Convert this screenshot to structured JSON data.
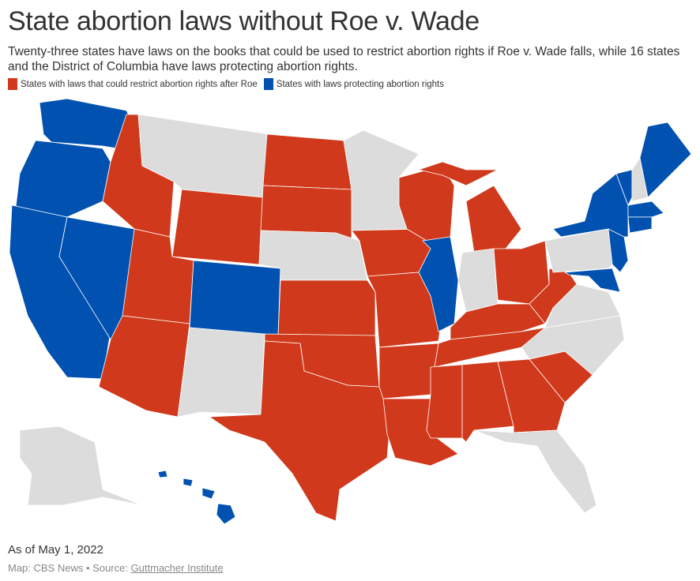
{
  "title": "State abortion laws without Roe v. Wade",
  "subtitle": "Twenty-three states have laws on the books that could be used to restrict abortion rights if Roe v. Wade falls, while 16 states and the District of Columbia have laws protecting abortion rights.",
  "legend": [
    {
      "label": "States with laws that could restrict abortion rights after Roe",
      "color": "#d0391b"
    },
    {
      "label": "States with laws protecting abortion rights",
      "color": "#0152b0"
    }
  ],
  "colors": {
    "restrict": "#d0391b",
    "protect": "#0152b0",
    "neutral": "#dcdcdc"
  },
  "footer": {
    "as_of": "As of May 1, 2022",
    "credit_prefix": "Map: CBS News • Source: ",
    "source_link": "Guttmacher Institute"
  }
}
